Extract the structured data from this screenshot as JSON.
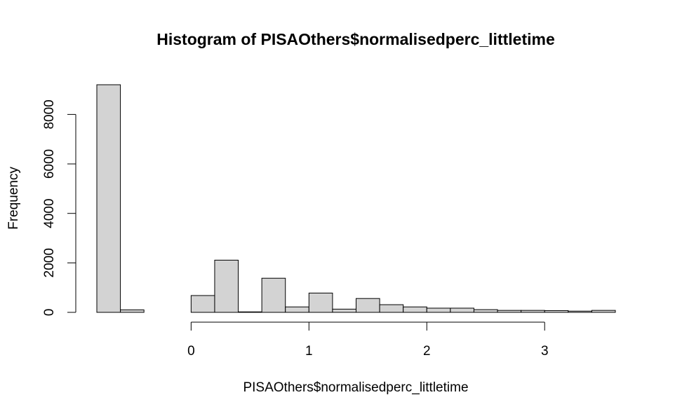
{
  "chart_data": {
    "type": "bar",
    "title": "Histogram of PISAOthers$normalisedperc_littletime",
    "xlabel": "PISAOthers$normalisedperc_littletime",
    "ylabel": "Frequency",
    "x_ticks": [
      0,
      1,
      2,
      3
    ],
    "x_tick_labels": [
      "0",
      "1",
      "2",
      "3"
    ],
    "xlim": [
      -0.8,
      3.6
    ],
    "y_ticks": [
      0,
      2000,
      4000,
      6000,
      8000
    ],
    "y_tick_labels": [
      "0",
      "2000",
      "4000",
      "6000",
      "8000"
    ],
    "ylim": [
      0,
      9200
    ],
    "bin_width": 0.2,
    "bins": [
      {
        "x0": -0.8,
        "x1": -0.6,
        "count": 9200
      },
      {
        "x0": -0.6,
        "x1": -0.4,
        "count": 100
      },
      {
        "x0": -0.4,
        "x1": -0.2,
        "count": 0
      },
      {
        "x0": -0.2,
        "x1": 0.0,
        "count": 0
      },
      {
        "x0": 0.0,
        "x1": 0.2,
        "count": 680
      },
      {
        "x0": 0.2,
        "x1": 0.4,
        "count": 2110
      },
      {
        "x0": 0.4,
        "x1": 0.6,
        "count": 20
      },
      {
        "x0": 0.6,
        "x1": 0.8,
        "count": 1380
      },
      {
        "x0": 0.8,
        "x1": 1.0,
        "count": 220
      },
      {
        "x0": 1.0,
        "x1": 1.2,
        "count": 780
      },
      {
        "x0": 1.2,
        "x1": 1.4,
        "count": 130
      },
      {
        "x0": 1.4,
        "x1": 1.6,
        "count": 560
      },
      {
        "x0": 1.6,
        "x1": 1.8,
        "count": 310
      },
      {
        "x0": 1.8,
        "x1": 2.0,
        "count": 220
      },
      {
        "x0": 2.0,
        "x1": 2.2,
        "count": 170
      },
      {
        "x0": 2.2,
        "x1": 2.4,
        "count": 170
      },
      {
        "x0": 2.4,
        "x1": 2.6,
        "count": 110
      },
      {
        "x0": 2.6,
        "x1": 2.8,
        "count": 80
      },
      {
        "x0": 2.8,
        "x1": 3.0,
        "count": 80
      },
      {
        "x0": 3.0,
        "x1": 3.2,
        "count": 70
      },
      {
        "x0": 3.2,
        "x1": 3.4,
        "count": 50
      },
      {
        "x0": 3.4,
        "x1": 3.6,
        "count": 80
      }
    ],
    "grid": false,
    "bar_fill": "#d3d3d3",
    "bar_stroke": "#000000"
  }
}
